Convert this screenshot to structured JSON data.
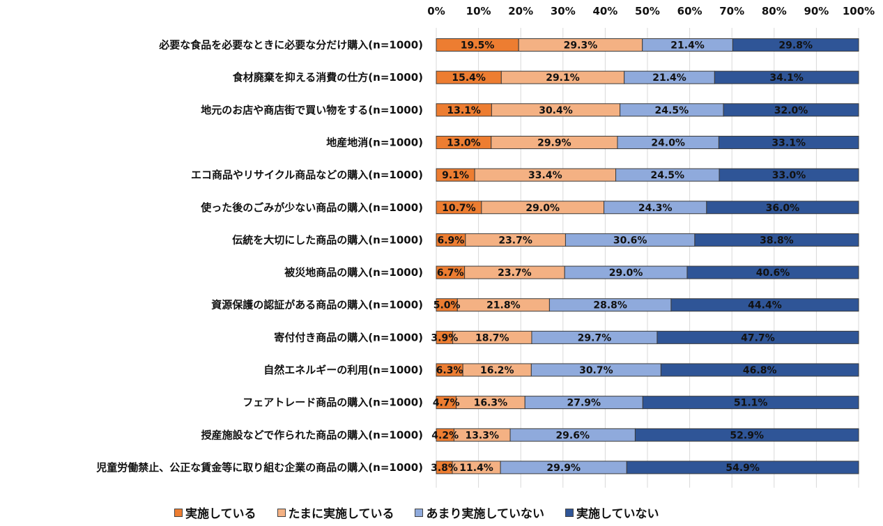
{
  "chart_data": {
    "type": "bar",
    "orientation": "horizontal",
    "stacked": "percent",
    "title": "",
    "xlabel": "",
    "ylabel": "",
    "xlim": [
      0,
      100
    ],
    "x_ticks": [
      "0%",
      "10%",
      "20%",
      "30%",
      "40%",
      "50%",
      "60%",
      "70%",
      "80%",
      "90%",
      "100%"
    ],
    "grid": true,
    "legend_position": "bottom",
    "categories": [
      "必要な食品を必要なときに必要な分だけ購入(n=1000)",
      "食材廃棄を抑える消費の仕方(n=1000)",
      "地元のお店や商店街で買い物をする(n=1000)",
      "地産地消(n=1000)",
      "エコ商品やリサイクル商品などの購入(n=1000)",
      "使った後のごみが少ない商品の購入(n=1000)",
      "伝統を大切にした商品の購入(n=1000)",
      "被災地商品の購入(n=1000)",
      "資源保護の認証がある商品の購入(n=1000)",
      "寄付付き商品の購入(n=1000)",
      "自然エネルギーの利用(n=1000)",
      "フェアトレード商品の購入(n=1000)",
      "授産施設などで作られた商品の購入(n=1000)",
      "児童労働禁止、公正な賃金等に取り組む企業の商品の購入(n=1000)"
    ],
    "series": [
      {
        "name": "実施している",
        "color": "#ED7D31",
        "values": [
          19.5,
          15.4,
          13.1,
          13.0,
          9.1,
          10.7,
          6.9,
          6.7,
          5.0,
          3.9,
          6.3,
          4.7,
          4.2,
          3.8
        ]
      },
      {
        "name": "たまに実施している",
        "color": "#F4B183",
        "values": [
          29.3,
          29.1,
          30.4,
          29.9,
          33.4,
          29.0,
          23.7,
          23.7,
          21.8,
          18.7,
          16.2,
          16.3,
          13.3,
          11.4
        ]
      },
      {
        "name": "あまり実施していない",
        "color": "#8FAADC",
        "values": [
          21.4,
          21.4,
          24.5,
          24.0,
          24.5,
          24.3,
          30.6,
          29.0,
          28.8,
          29.7,
          30.7,
          27.9,
          29.6,
          29.9
        ]
      },
      {
        "name": "実施していない",
        "color": "#2F5597",
        "values": [
          29.8,
          34.1,
          32.0,
          33.1,
          33.0,
          36.0,
          38.8,
          40.6,
          44.4,
          47.7,
          46.8,
          51.1,
          52.9,
          54.9
        ]
      }
    ]
  }
}
